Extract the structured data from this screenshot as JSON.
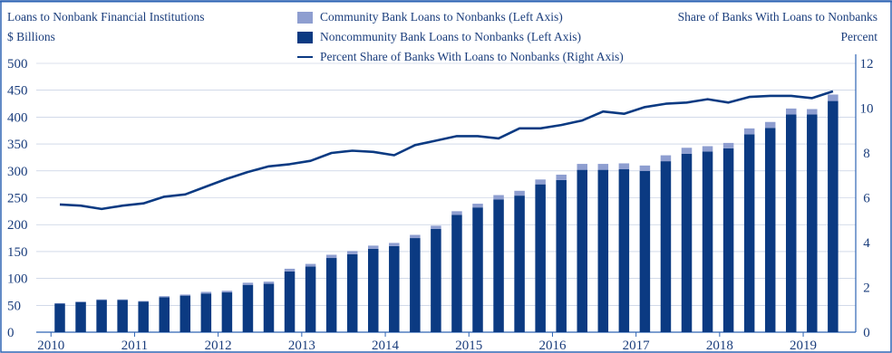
{
  "header": {
    "left_title": "Loans to Nonbank Financial Institutions",
    "left_unit": "$ Billions",
    "right_title": "Share of Banks With Loans to Nonbanks",
    "right_unit": "Percent"
  },
  "legend": {
    "community": "Community Bank Loans to Nonbanks (Left Axis)",
    "noncommunity": "Noncommunity Bank Loans to Nonbanks (Left Axis)",
    "share": "Percent Share of Banks With Loans to Nonbanks (Right Axis)"
  },
  "colors": {
    "community": "#8e9ed0",
    "noncommunity": "#0b3a82",
    "line": "#0b3a82",
    "text": "#1a3d7c",
    "grid": "#b8c4dc",
    "frame": "#2e64b4"
  },
  "chart_data": {
    "type": "bar",
    "stacked": true,
    "x_tick_labels": [
      "2010",
      "2011",
      "2012",
      "2013",
      "2014",
      "2015",
      "2016",
      "2017",
      "2018",
      "2019"
    ],
    "quarters_per_year": 4,
    "left_axis": {
      "ylim": [
        0,
        500
      ],
      "ticks": [
        "0",
        "50",
        "100",
        "150",
        "200",
        "250",
        "300",
        "350",
        "400",
        "450",
        "500"
      ]
    },
    "right_axis": {
      "ylim": [
        0,
        12
      ],
      "ticks": [
        "0",
        "2",
        "4",
        "6",
        "8",
        "10",
        "12"
      ]
    },
    "grid": false,
    "series": [
      {
        "name": "Noncommunity Bank Loans to Nonbanks (Left Axis)",
        "kind": "bar",
        "axis": "left",
        "values": [
          53,
          56,
          60,
          60,
          57,
          65,
          68,
          72,
          74,
          88,
          90,
          113,
          122,
          138,
          145,
          155,
          160,
          175,
          192,
          218,
          232,
          247,
          254,
          275,
          283,
          302,
          302,
          303,
          300,
          318,
          332,
          336,
          342,
          368,
          380,
          405,
          405,
          430
        ]
      },
      {
        "name": "Community Bank Loans to Nonbanks (Left Axis)",
        "kind": "bar",
        "axis": "left",
        "values": [
          1,
          1,
          1,
          1,
          1,
          2,
          2,
          3,
          3,
          4,
          4,
          5,
          5,
          6,
          6,
          6,
          6,
          6,
          6,
          7,
          7,
          8,
          9,
          9,
          10,
          11,
          11,
          11,
          10,
          11,
          11,
          10,
          10,
          11,
          11,
          11,
          10,
          12
        ]
      },
      {
        "name": "Percent Share of Banks With Loans to Nonbanks (Right Axis)",
        "kind": "line",
        "axis": "right",
        "values": [
          5.7,
          5.65,
          5.5,
          5.65,
          5.75,
          6.05,
          6.15,
          6.5,
          6.85,
          7.15,
          7.4,
          7.5,
          7.65,
          8.0,
          8.1,
          8.05,
          7.9,
          8.35,
          8.55,
          8.75,
          8.75,
          8.65,
          9.1,
          9.1,
          9.25,
          9.45,
          9.85,
          9.75,
          10.05,
          10.2,
          10.25,
          10.4,
          10.25,
          10.5,
          10.55,
          10.55,
          10.45,
          10.75
        ]
      }
    ]
  }
}
